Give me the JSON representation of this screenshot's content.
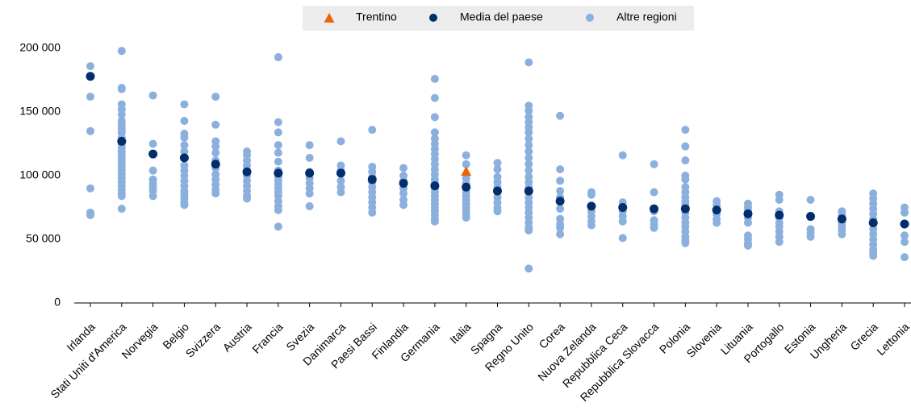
{
  "chart_data": {
    "type": "scatter",
    "categories": [
      "Irlanda",
      "Stati Uniti d'America",
      "Norvegia",
      "Belgio",
      "Svizzera",
      "Austria",
      "Francia",
      "Svezia",
      "Danimarca",
      "Paesi Bassi",
      "Finlandia",
      "Germania",
      "Italia",
      "Spagna",
      "Regno Unito",
      "Corea",
      "Nuova Zelanda",
      "Repubblica Ceca",
      "Repubblica Slovacca",
      "Polonia",
      "Slovenia",
      "Lituania",
      "Portogallo",
      "Estonia",
      "Ungheria",
      "Grecia",
      "Lettonia"
    ],
    "series": [
      {
        "name": "Trentino",
        "color": "#e8650a",
        "marker": "triangle",
        "values": [
          null,
          null,
          null,
          null,
          null,
          null,
          null,
          null,
          null,
          null,
          null,
          null,
          103000,
          null,
          null,
          null,
          null,
          null,
          null,
          null,
          null,
          null,
          null,
          null,
          null,
          null,
          null
        ]
      },
      {
        "name": "Media del paese",
        "color": "#002f6c",
        "marker": "circle",
        "values": [
          178000,
          127000,
          117000,
          114000,
          109000,
          103000,
          102000,
          102000,
          102000,
          97000,
          94000,
          92000,
          91000,
          88000,
          88000,
          80000,
          76000,
          75000,
          74000,
          74000,
          73000,
          70000,
          69000,
          68000,
          66000,
          63000,
          62000
        ]
      },
      {
        "name": "Altre regioni",
        "color": "#8cb0de",
        "marker": "circle",
        "values": [
          [
            186000,
            162000,
            135000,
            90000,
            71000,
            69000
          ],
          [
            198000,
            169000,
            168000,
            156000,
            152000,
            148000,
            143000,
            140000,
            137000,
            134000,
            130000,
            125000,
            122000,
            119000,
            116000,
            113000,
            110000,
            107000,
            104000,
            101000,
            98000,
            95000,
            92000,
            89000,
            86000,
            84000,
            74000
          ],
          [
            163000,
            125000,
            104000,
            97000,
            94000,
            91000,
            88000,
            84000
          ],
          [
            156000,
            143000,
            133000,
            130000,
            124000,
            119000,
            108000,
            104000,
            100000,
            96000,
            92000,
            88000,
            85000,
            82000,
            79000,
            77000
          ],
          [
            162000,
            140000,
            127000,
            123000,
            118000,
            112000,
            106000,
            101000,
            97000,
            93000,
            89000,
            86000
          ],
          [
            119000,
            116000,
            112000,
            108000,
            104000,
            100000,
            96000,
            92000,
            88000,
            84000,
            82000
          ],
          [
            193000,
            142000,
            134000,
            124000,
            118000,
            111000,
            104000,
            99000,
            96000,
            93000,
            90000,
            87000,
            84000,
            80000,
            76000,
            73000,
            60000
          ],
          [
            124000,
            114000,
            103000,
            98000,
            94000,
            90000,
            86000,
            76000
          ],
          [
            127000,
            108000,
            104000,
            96000,
            91000,
            87000
          ],
          [
            136000,
            107000,
            103000,
            99000,
            95000,
            91000,
            87000,
            83000,
            79000,
            75000,
            71000
          ],
          [
            106000,
            100000,
            96000,
            90000,
            86000,
            81000,
            77000
          ],
          [
            176000,
            161000,
            146000,
            134000,
            129000,
            125000,
            121000,
            117000,
            113000,
            109000,
            105000,
            101000,
            97000,
            94000,
            90000,
            87000,
            84000,
            81000,
            78000,
            75000,
            72000,
            69000,
            66000,
            64000
          ],
          [
            116000,
            109000,
            98000,
            94000,
            90000,
            87000,
            84000,
            81000,
            78000,
            75000,
            72000,
            69000,
            67000
          ],
          [
            110000,
            105000,
            99000,
            95000,
            91000,
            87000,
            83000,
            79000,
            75000,
            72000
          ],
          [
            189000,
            155000,
            151000,
            146000,
            142000,
            138000,
            134000,
            129000,
            124000,
            119000,
            114000,
            109000,
            104000,
            99000,
            95000,
            91000,
            87000,
            83000,
            79000,
            75000,
            71000,
            67000,
            63000,
            59000,
            57000,
            27000
          ],
          [
            147000,
            105000,
            96000,
            88000,
            83000,
            74000,
            66000,
            62000,
            59000,
            54000
          ],
          [
            87000,
            85000,
            72000,
            68000,
            64000,
            61000
          ],
          [
            116000,
            79000,
            76000,
            72000,
            68000,
            64000,
            51000
          ],
          [
            109000,
            87000,
            72000,
            65000,
            62000,
            59000
          ],
          [
            136000,
            123000,
            112000,
            100000,
            97000,
            91000,
            87000,
            83000,
            80000,
            77000,
            71000,
            67000,
            63000,
            60000,
            56000,
            52000,
            49000,
            47000
          ],
          [
            80000,
            77000,
            73000,
            70000,
            66000,
            63000
          ],
          [
            78000,
            75000,
            72000,
            67000,
            63000,
            53000,
            50000,
            47000,
            45000
          ],
          [
            85000,
            81000,
            72000,
            67000,
            63000,
            60000,
            56000,
            52000,
            48000
          ],
          [
            81000,
            58000,
            55000,
            52000
          ],
          [
            72000,
            69000,
            63000,
            60000,
            57000,
            54000
          ],
          [
            86000,
            82000,
            78000,
            74000,
            70000,
            66000,
            62000,
            58000,
            54000,
            50000,
            46000,
            42000,
            39000,
            37000
          ],
          [
            75000,
            71000,
            53000,
            48000,
            36000
          ]
        ]
      }
    ],
    "ylim": [
      0,
      200000
    ],
    "yticks": [
      0,
      {
        "value": 50000,
        "label": "50 000"
      },
      {
        "value": 100000,
        "label": "100 000"
      },
      {
        "value": 150000,
        "label": "150 000"
      },
      {
        "value": 200000,
        "label": "200 000"
      }
    ],
    "grid": false
  }
}
